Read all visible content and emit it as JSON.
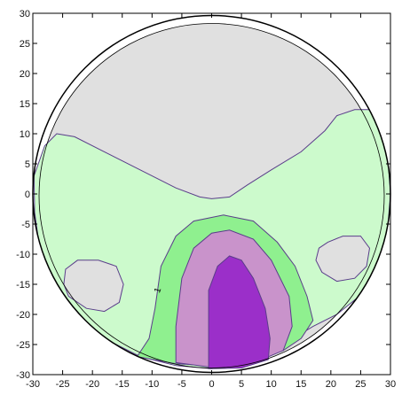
{
  "chart_data": {
    "type": "contour",
    "title": "",
    "xlabel": "",
    "ylabel": "",
    "xlim": [
      -30,
      30
    ],
    "ylim": [
      -30,
      30
    ],
    "x_ticks": [
      -30,
      -25,
      -20,
      -15,
      -10,
      -5,
      0,
      5,
      10,
      15,
      20,
      25,
      30
    ],
    "y_ticks": [
      -30,
      -25,
      -20,
      -15,
      -10,
      -5,
      0,
      5,
      10,
      15,
      20,
      25,
      30
    ],
    "grid": false,
    "domain": "circle of radius 30 centered at (0,0)",
    "colors": {
      "background_region": "#e0e0e0",
      "level_1_fill": "#ccfacc",
      "level_2_fill": "#8ff08f",
      "level_3_fill": "#c993cb",
      "level_4_fill": "#9b2fc9",
      "contour_line": "#5a3d8a",
      "border": "#000000"
    },
    "contour_labels": [
      {
        "text": "1",
        "x": -9,
        "y": -16
      }
    ],
    "regions": [
      {
        "fill": "level_1_fill",
        "name": "",
        "points": [
          [
            -26,
            10
          ],
          [
            -23,
            9.5
          ],
          [
            -18,
            7
          ],
          [
            -12,
            4
          ],
          [
            -6,
            1
          ],
          [
            -2,
            -0.5
          ],
          [
            0,
            -0.8
          ],
          [
            3,
            -0.5
          ],
          [
            6,
            1.5
          ],
          [
            10,
            4
          ],
          [
            15,
            7
          ],
          [
            19,
            10.5
          ],
          [
            21,
            13
          ],
          [
            24,
            14
          ],
          [
            29,
            14
          ],
          [
            30,
            0
          ],
          [
            29.6,
            -5
          ],
          [
            28.5,
            -10
          ],
          [
            26,
            -16
          ],
          [
            21,
            -20
          ],
          [
            17,
            -22
          ],
          [
            12,
            -25
          ],
          [
            6,
            -28
          ],
          [
            0,
            -29
          ],
          [
            -6,
            -28.5
          ],
          [
            -12,
            -27
          ],
          [
            -18,
            -24
          ],
          [
            -23,
            -20
          ],
          [
            -27,
            -15
          ],
          [
            -29,
            -8
          ],
          [
            -29.7,
            -3
          ],
          [
            -29.8,
            3
          ],
          [
            -28,
            8
          ]
        ]
      },
      {
        "fill": "background_region",
        "name": "",
        "points": [
          [
            -24.5,
            -12.5
          ],
          [
            -22.5,
            -11
          ],
          [
            -19,
            -11
          ],
          [
            -16,
            -12
          ],
          [
            -14.8,
            -15
          ],
          [
            -15.5,
            -18
          ],
          [
            -18,
            -19.5
          ],
          [
            -21,
            -19
          ],
          [
            -24,
            -17
          ],
          [
            -24.8,
            -15
          ]
        ]
      },
      {
        "fill": "background_region",
        "name": "",
        "points": [
          [
            18,
            -9
          ],
          [
            19.5,
            -8
          ],
          [
            22,
            -7
          ],
          [
            25,
            -7
          ],
          [
            26.5,
            -9
          ],
          [
            26,
            -12
          ],
          [
            24,
            -14
          ],
          [
            21,
            -14.5
          ],
          [
            18.5,
            -13
          ],
          [
            17.5,
            -11
          ]
        ]
      },
      {
        "fill": "level_2_fill",
        "name": "",
        "points": [
          [
            -12.5,
            -27
          ],
          [
            -10.5,
            -24
          ],
          [
            -9.5,
            -19
          ],
          [
            -8.5,
            -12
          ],
          [
            -6,
            -7
          ],
          [
            -3,
            -4.5
          ],
          [
            2,
            -3.5
          ],
          [
            7,
            -4.5
          ],
          [
            11,
            -8
          ],
          [
            14,
            -12
          ],
          [
            16,
            -17
          ],
          [
            17,
            -21
          ],
          [
            15,
            -24
          ],
          [
            12,
            -26
          ],
          [
            6,
            -28
          ],
          [
            0,
            -28.5
          ],
          [
            -6,
            -28.2
          ]
        ]
      },
      {
        "fill": "level_3_fill",
        "name": "",
        "points": [
          [
            -6,
            -28
          ],
          [
            -6,
            -22
          ],
          [
            -5,
            -14
          ],
          [
            -3,
            -9
          ],
          [
            0,
            -6.5
          ],
          [
            3,
            -6
          ],
          [
            7,
            -7.5
          ],
          [
            10,
            -11
          ],
          [
            13,
            -17
          ],
          [
            13.5,
            -22
          ],
          [
            12,
            -26
          ],
          [
            6,
            -28.5
          ],
          [
            0,
            -28.8
          ]
        ]
      },
      {
        "fill": "level_4_fill",
        "name": "",
        "points": [
          [
            -0.5,
            -29
          ],
          [
            -0.5,
            -22
          ],
          [
            -0.5,
            -16
          ],
          [
            1,
            -12
          ],
          [
            3,
            -10.3
          ],
          [
            5,
            -11
          ],
          [
            7,
            -14
          ],
          [
            9,
            -19
          ],
          [
            9.8,
            -24
          ],
          [
            9.5,
            -27.5
          ],
          [
            5,
            -28.9
          ]
        ]
      }
    ]
  }
}
